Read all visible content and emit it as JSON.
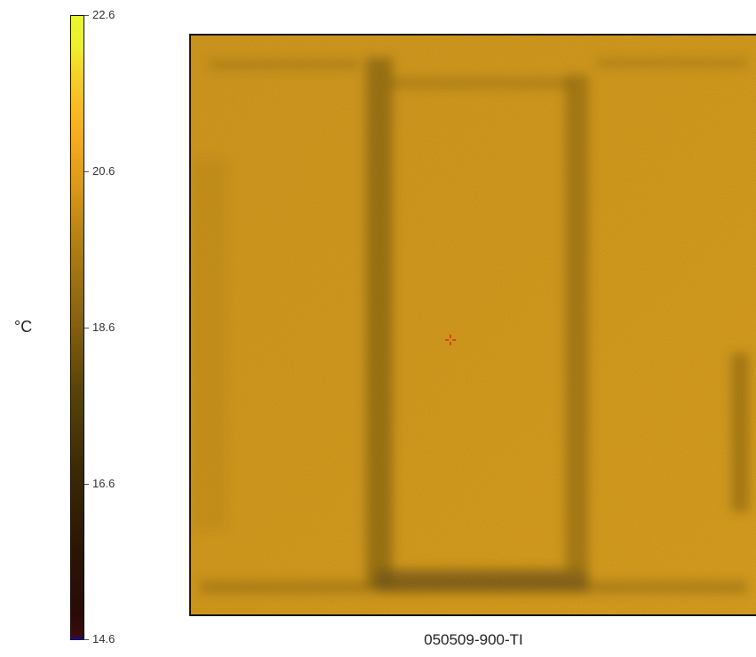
{
  "colorbar": {
    "unit": "°C",
    "min": 14.6,
    "max": 22.6,
    "ticks": [
      "22.6",
      "20.6",
      "18.6",
      "16.6",
      "14.6"
    ]
  },
  "thermal_image": {
    "caption": "050509-900-TI",
    "cursor_marker": "crosshair-icon",
    "colors": {
      "base": "#d99a17",
      "dark_band": "#5a3f0a",
      "cursor": "#e0201a"
    }
  }
}
